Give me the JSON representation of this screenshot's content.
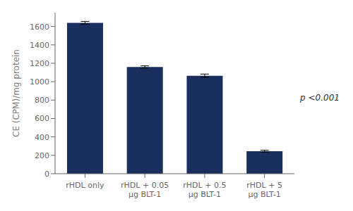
{
  "chart_data": {
    "type": "bar",
    "categories": [
      "rHDL only",
      "rHDL + 0.05\nμg BLT-1",
      "rHDL + 0.5\nμg BLT-1",
      "rHDL + 5\nμg BLT-1"
    ],
    "values": [
      1640,
      1160,
      1065,
      245
    ],
    "errors": [
      15,
      12,
      18,
      10
    ],
    "color": "#1a2f5e",
    "ylabel": "CE (CPM)/mg protein",
    "ylim": [
      0,
      1750
    ],
    "yticks": [
      0,
      200,
      400,
      600,
      800,
      1000,
      1200,
      1400,
      1600
    ],
    "annotation": "p <0.001",
    "grid": false
  }
}
